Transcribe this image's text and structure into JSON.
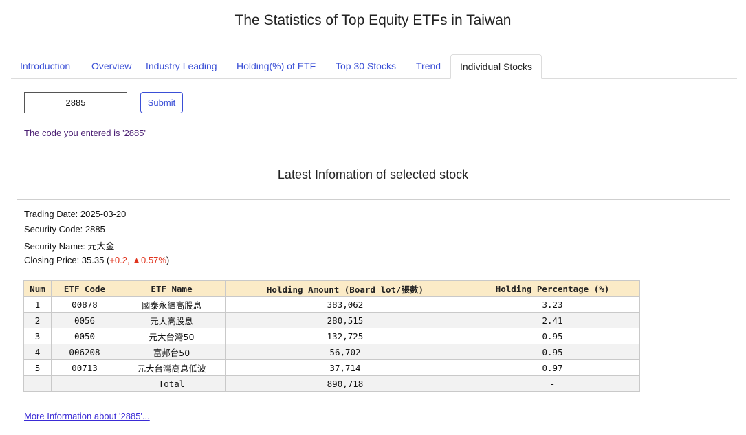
{
  "page": {
    "title": "The Statistics of Top Equity ETFs in Taiwan"
  },
  "tabs": [
    {
      "label": "Introduction"
    },
    {
      "label": "Overview"
    },
    {
      "label": "Industry Leading"
    },
    {
      "label": "Holding(%) of ETF"
    },
    {
      "label": "Top 30 Stocks"
    },
    {
      "label": "Trend"
    },
    {
      "label": "Individual Stocks"
    }
  ],
  "active_tab": "Individual Stocks",
  "search": {
    "value": "2885",
    "submit_label": "Submit",
    "message": "The code you entered is '2885'"
  },
  "section": {
    "title": "Latest Infomation of selected stock"
  },
  "stock": {
    "trading_date": "Trading Date: 2025-03-20",
    "security_code": "Security Code: 2885",
    "security_name_label": "Security Name: ",
    "security_name": "元大金",
    "closing_price_label": "Closing Price: 35.35 (",
    "closing_change": "+0.2, ▲0.57%",
    "closing_close": ")"
  },
  "table": {
    "headers": [
      "Num",
      "ETF Code",
      "ETF Name",
      "Holding Amount (Board lot/張數)",
      "Holding Percentage (%)"
    ],
    "rows": [
      [
        "1",
        "00878",
        "國泰永續高股息",
        "383,062",
        "3.23"
      ],
      [
        "2",
        "0056",
        "元大高股息",
        "280,515",
        "2.41"
      ],
      [
        "3",
        "0050",
        "元大台灣50",
        "132,725",
        "0.95"
      ],
      [
        "4",
        "006208",
        "富邦台50",
        "56,702",
        "0.95"
      ],
      [
        "5",
        "00713",
        "元大台灣高息低波",
        "37,714",
        "0.97"
      ]
    ],
    "total": [
      "",
      "",
      "Total",
      "890,718",
      "-"
    ]
  },
  "colors": {
    "accent": "#3a4fd6",
    "header_bg": "#fbebc7",
    "change_up": "#e0341e"
  },
  "more_link": "More Information about '2885'..."
}
